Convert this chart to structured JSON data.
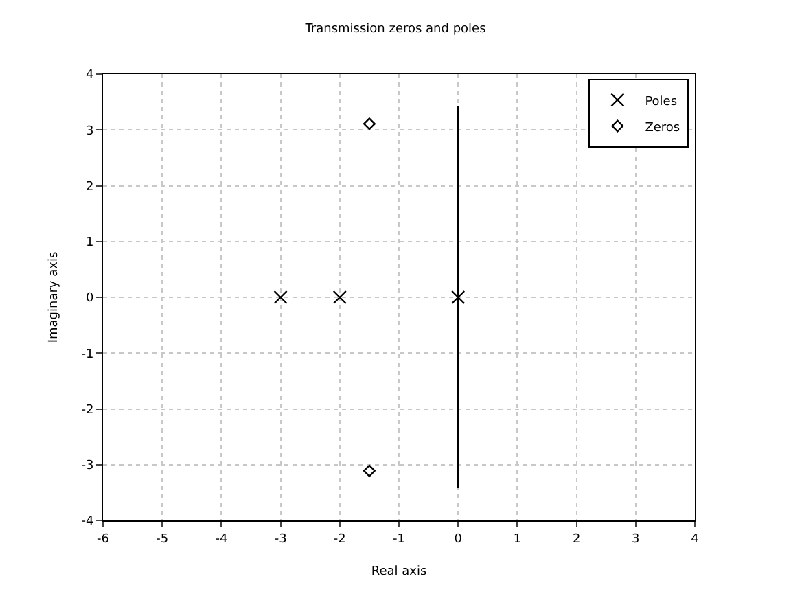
{
  "chart_data": {
    "type": "scatter",
    "title": "Transmission zeros and poles",
    "xlabel": "Real axis",
    "ylabel": "Imaginary axis",
    "xlim": [
      -6,
      4
    ],
    "xticks": [
      -6,
      -5,
      -4,
      -3,
      -2,
      -1,
      0,
      1,
      2,
      3,
      4
    ],
    "ylim": [
      -4,
      4
    ],
    "yticks": [
      -4,
      -3,
      -2,
      -1,
      0,
      1,
      2,
      3,
      4
    ],
    "grid": true,
    "legend": "top right",
    "series": [
      {
        "type": "line",
        "x": [
          0,
          0
        ],
        "values": [
          -3.42,
          3.42
        ],
        "color": "#000000",
        "marker": "none"
      },
      {
        "name": "Poles",
        "x": [
          -3,
          -2,
          0
        ],
        "values": [
          0,
          0,
          0
        ],
        "color": "#000000",
        "marker": "cross"
      },
      {
        "name": "Zeros",
        "x": [
          -1.5,
          -1.5
        ],
        "values": [
          3.11,
          -3.11
        ],
        "color": "#000000",
        "marker": "diamond"
      }
    ]
  }
}
